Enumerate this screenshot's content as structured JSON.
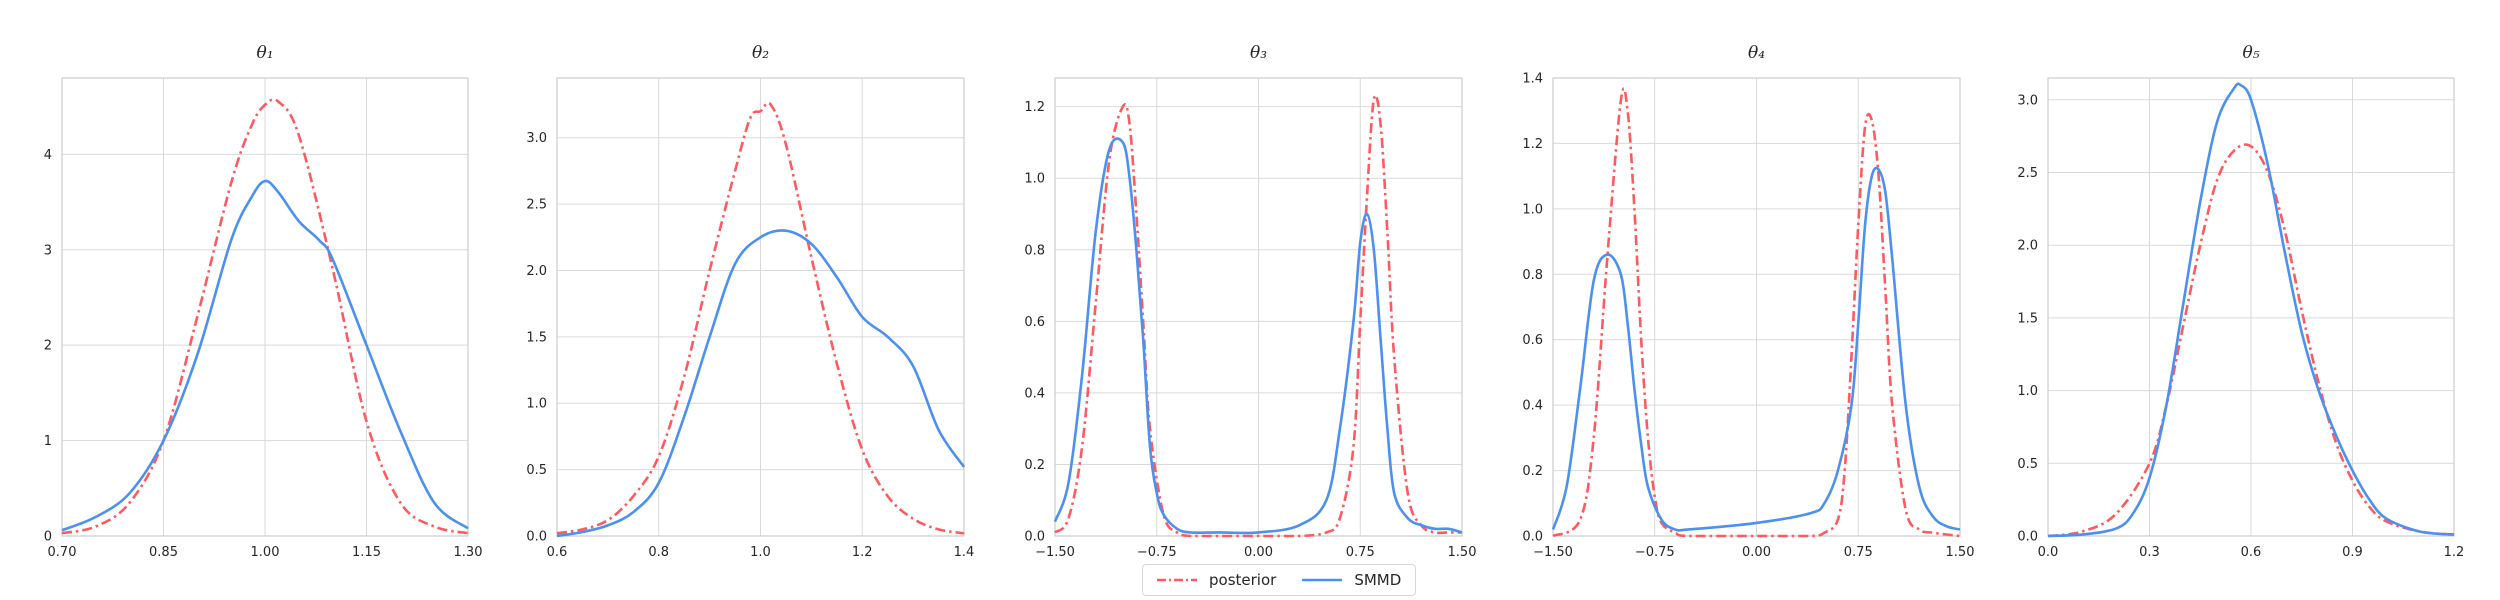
{
  "chart_data": [
    {
      "type": "line",
      "title": "θ₁",
      "xlim": [
        0.7,
        1.3
      ],
      "ylim": [
        0,
        4.8
      ],
      "xticks": [
        "0.70",
        "0.85",
        "1.00",
        "1.15",
        "1.30"
      ],
      "xtick_values": [
        0.7,
        0.85,
        1.0,
        1.15,
        1.3
      ],
      "yticks": [
        "0",
        "1",
        "2",
        "3",
        "4"
      ],
      "ytick_values": [
        0,
        1,
        2,
        3,
        4
      ],
      "grid": true,
      "series": [
        {
          "name": "posterior",
          "x": [
            0.7,
            0.75,
            0.8,
            0.85,
            0.9,
            0.95,
            0.98,
            1.0,
            1.02,
            1.05,
            1.1,
            1.15,
            1.2,
            1.25,
            1.3
          ],
          "y": [
            0.03,
            0.1,
            0.35,
            1.0,
            2.3,
            3.7,
            4.3,
            4.52,
            4.55,
            4.2,
            2.8,
            1.2,
            0.35,
            0.1,
            0.03
          ]
        },
        {
          "name": "SMMD",
          "x": [
            0.7,
            0.75,
            0.8,
            0.85,
            0.9,
            0.95,
            0.98,
            1.0,
            1.02,
            1.05,
            1.08,
            1.1,
            1.15,
            1.2,
            1.25,
            1.3
          ],
          "y": [
            0.06,
            0.2,
            0.45,
            1.0,
            1.9,
            3.1,
            3.55,
            3.72,
            3.6,
            3.3,
            3.1,
            2.9,
            2.0,
            1.1,
            0.35,
            0.08
          ]
        }
      ]
    },
    {
      "type": "line",
      "title": "θ₂",
      "xlim": [
        0.6,
        1.4
      ],
      "ylim": [
        0,
        3.45
      ],
      "xticks": [
        "0.6",
        "0.8",
        "1.0",
        "1.2",
        "1.4"
      ],
      "xtick_values": [
        0.6,
        0.8,
        1.0,
        1.2,
        1.4
      ],
      "yticks": [
        "0.0",
        "0.5",
        "1.0",
        "1.5",
        "2.0",
        "2.5",
        "3.0"
      ],
      "ytick_values": [
        0,
        0.5,
        1.0,
        1.5,
        2.0,
        2.5,
        3.0
      ],
      "grid": true,
      "series": [
        {
          "name": "posterior",
          "x": [
            0.6,
            0.65,
            0.7,
            0.75,
            0.8,
            0.85,
            0.9,
            0.95,
            0.98,
            1.0,
            1.02,
            1.05,
            1.1,
            1.15,
            1.2,
            1.25,
            1.3,
            1.35,
            1.4
          ],
          "y": [
            0.02,
            0.05,
            0.12,
            0.3,
            0.6,
            1.2,
            2.0,
            2.75,
            3.15,
            3.2,
            3.25,
            2.95,
            2.1,
            1.3,
            0.65,
            0.3,
            0.13,
            0.05,
            0.02
          ]
        },
        {
          "name": "SMMD",
          "x": [
            0.6,
            0.65,
            0.7,
            0.75,
            0.8,
            0.85,
            0.9,
            0.95,
            1.0,
            1.05,
            1.1,
            1.15,
            1.2,
            1.25,
            1.3,
            1.35,
            1.4
          ],
          "y": [
            0.0,
            0.03,
            0.08,
            0.18,
            0.4,
            0.9,
            1.5,
            2.05,
            2.25,
            2.3,
            2.2,
            1.95,
            1.65,
            1.5,
            1.28,
            0.8,
            0.52
          ]
        }
      ]
    },
    {
      "type": "line",
      "title": "θ₃",
      "xlim": [
        -1.5,
        1.5
      ],
      "ylim": [
        0,
        1.28
      ],
      "xticks": [
        "−1.50",
        "−0.75",
        "0.00",
        "0.75",
        "1.50"
      ],
      "xtick_values": [
        -1.5,
        -0.75,
        0.0,
        0.75,
        1.5
      ],
      "yticks": [
        "0.0",
        "0.2",
        "0.4",
        "0.6",
        "0.8",
        "1.0",
        "1.2"
      ],
      "ytick_values": [
        0,
        0.2,
        0.4,
        0.6,
        0.8,
        1.0,
        1.2
      ],
      "grid": true,
      "series": [
        {
          "name": "posterior",
          "x": [
            -1.5,
            -1.4,
            -1.3,
            -1.2,
            -1.1,
            -1.0,
            -0.95,
            -0.9,
            -0.85,
            -0.8,
            -0.7,
            -0.6,
            -0.5,
            -0.3,
            0.0,
            0.3,
            0.5,
            0.6,
            0.7,
            0.75,
            0.8,
            0.85,
            0.9,
            0.95,
            1.0,
            1.1,
            1.2,
            1.3,
            1.4,
            1.5
          ],
          "y": [
            0.01,
            0.05,
            0.25,
            0.65,
            1.05,
            1.2,
            1.15,
            0.9,
            0.6,
            0.3,
            0.06,
            0.01,
            0.0,
            0.0,
            0.0,
            0.0,
            0.01,
            0.05,
            0.25,
            0.6,
            0.95,
            1.22,
            1.15,
            0.85,
            0.5,
            0.12,
            0.03,
            0.01,
            0.01,
            0.01
          ]
        },
        {
          "name": "SMMD",
          "x": [
            -1.5,
            -1.4,
            -1.3,
            -1.2,
            -1.1,
            -1.0,
            -0.95,
            -0.9,
            -0.85,
            -0.8,
            -0.75,
            -0.7,
            -0.6,
            -0.5,
            -0.3,
            0.0,
            0.3,
            0.5,
            0.6,
            0.7,
            0.75,
            0.8,
            0.85,
            0.9,
            0.95,
            1.0,
            1.1,
            1.2,
            1.3,
            1.4,
            1.5
          ],
          "y": [
            0.04,
            0.15,
            0.45,
            0.85,
            1.08,
            1.1,
            1.0,
            0.8,
            0.55,
            0.25,
            0.12,
            0.06,
            0.02,
            0.01,
            0.01,
            0.01,
            0.03,
            0.1,
            0.3,
            0.6,
            0.82,
            0.9,
            0.8,
            0.55,
            0.3,
            0.12,
            0.05,
            0.03,
            0.02,
            0.02,
            0.01
          ]
        }
      ]
    },
    {
      "type": "line",
      "title": "θ₄",
      "xlim": [
        -1.5,
        1.5
      ],
      "ylim": [
        0,
        1.4
      ],
      "xticks": [
        "−1.50",
        "−0.75",
        "0.00",
        "0.75",
        "1.50"
      ],
      "xtick_values": [
        -1.5,
        -0.75,
        0.0,
        0.75,
        1.5
      ],
      "yticks": [
        "0.0",
        "0.2",
        "0.4",
        "0.6",
        "0.8",
        "1.0",
        "1.2",
        "1.4"
      ],
      "ytick_values": [
        0,
        0.2,
        0.4,
        0.6,
        0.8,
        1.0,
        1.2,
        1.4
      ],
      "grid": true,
      "series": [
        {
          "name": "posterior",
          "x": [
            -1.5,
            -1.3,
            -1.2,
            -1.1,
            -1.0,
            -0.95,
            -0.9,
            -0.85,
            -0.8,
            -0.75,
            -0.7,
            -0.6,
            -0.5,
            0.0,
            0.4,
            0.5,
            0.6,
            0.65,
            0.7,
            0.75,
            0.8,
            0.85,
            0.9,
            0.95,
            1.0,
            1.1,
            1.2,
            1.3,
            1.5
          ],
          "y": [
            0.0,
            0.05,
            0.3,
            0.85,
            1.33,
            1.3,
            1.0,
            0.6,
            0.3,
            0.12,
            0.04,
            0.01,
            0.0,
            0.0,
            0.0,
            0.01,
            0.05,
            0.2,
            0.55,
            0.95,
            1.25,
            1.27,
            1.1,
            0.75,
            0.4,
            0.08,
            0.02,
            0.01,
            0.0
          ]
        },
        {
          "name": "SMMD",
          "x": [
            -1.5,
            -1.4,
            -1.3,
            -1.2,
            -1.1,
            -1.0,
            -0.95,
            -0.9,
            -0.85,
            -0.8,
            -0.7,
            -0.6,
            -0.5,
            0.0,
            0.4,
            0.5,
            0.6,
            0.7,
            0.75,
            0.8,
            0.85,
            0.9,
            0.95,
            1.0,
            1.1,
            1.2,
            1.3,
            1.4,
            1.5
          ],
          "y": [
            0.02,
            0.15,
            0.45,
            0.78,
            0.86,
            0.8,
            0.65,
            0.45,
            0.28,
            0.15,
            0.05,
            0.02,
            0.02,
            0.04,
            0.07,
            0.1,
            0.2,
            0.4,
            0.65,
            0.95,
            1.1,
            1.12,
            1.05,
            0.85,
            0.4,
            0.15,
            0.06,
            0.03,
            0.02
          ]
        }
      ]
    },
    {
      "type": "line",
      "title": "θ₅",
      "xlim": [
        0.0,
        1.2
      ],
      "ylim": [
        0,
        3.15
      ],
      "xticks": [
        "0.0",
        "0.3",
        "0.6",
        "0.9",
        "1.2"
      ],
      "xtick_values": [
        0.0,
        0.3,
        0.6,
        0.9,
        1.2
      ],
      "yticks": [
        "0.0",
        "0.5",
        "1.0",
        "1.5",
        "2.0",
        "2.5",
        "3.0"
      ],
      "ytick_values": [
        0,
        0.5,
        1.0,
        1.5,
        2.0,
        2.5,
        3.0
      ],
      "grid": true,
      "series": [
        {
          "name": "posterior",
          "x": [
            0.0,
            0.1,
            0.2,
            0.3,
            0.35,
            0.4,
            0.45,
            0.5,
            0.55,
            0.6,
            0.65,
            0.7,
            0.75,
            0.8,
            0.85,
            0.9,
            0.95,
            1.0,
            1.1,
            1.2
          ],
          "y": [
            0.0,
            0.03,
            0.15,
            0.5,
            0.9,
            1.45,
            2.0,
            2.45,
            2.65,
            2.68,
            2.5,
            2.1,
            1.55,
            1.05,
            0.65,
            0.38,
            0.2,
            0.1,
            0.03,
            0.01
          ]
        },
        {
          "name": "SMMD",
          "x": [
            0.0,
            0.1,
            0.2,
            0.25,
            0.3,
            0.35,
            0.4,
            0.45,
            0.5,
            0.55,
            0.57,
            0.6,
            0.65,
            0.7,
            0.75,
            0.8,
            0.85,
            0.9,
            0.95,
            1.0,
            1.1,
            1.2
          ],
          "y": [
            0.0,
            0.01,
            0.05,
            0.15,
            0.4,
            0.9,
            1.6,
            2.3,
            2.85,
            3.08,
            3.1,
            3.0,
            2.55,
            1.95,
            1.4,
            1.0,
            0.7,
            0.45,
            0.25,
            0.12,
            0.03,
            0.01
          ]
        }
      ]
    }
  ],
  "legend": {
    "entries": [
      {
        "name": "posterior",
        "color": "#ff5a5f",
        "style": "dash-dot"
      },
      {
        "name": "SMMD",
        "color": "#4c90f0",
        "style": "solid"
      }
    ],
    "placement": "bottom-center"
  },
  "colors": {
    "posterior": "#ff5a5f",
    "SMMD": "#4c90f0",
    "grid": "#d9d9d9",
    "spine": "#cccccc",
    "text": "#262626"
  }
}
